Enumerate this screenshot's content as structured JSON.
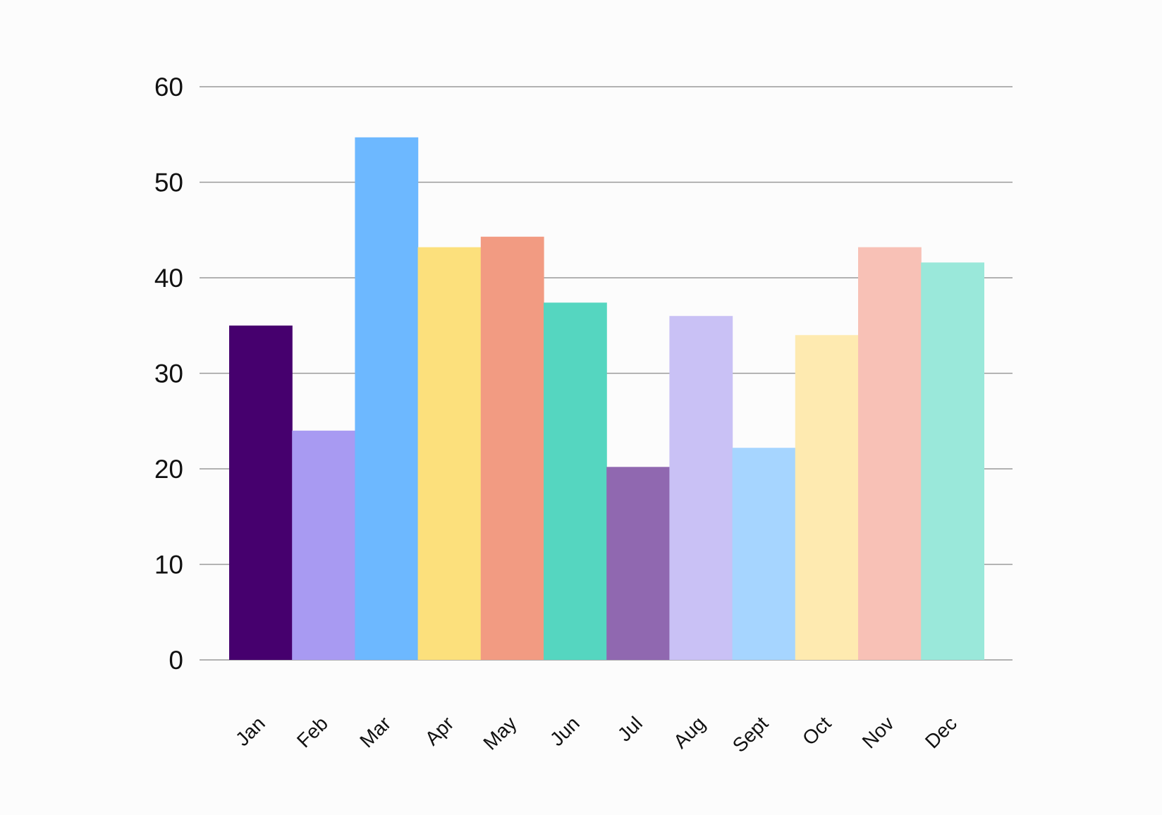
{
  "chart_data": {
    "type": "bar",
    "categories": [
      "Jan",
      "Feb",
      "Mar",
      "Apr",
      "May",
      "Jun",
      "Jul",
      "Aug",
      "Sept",
      "Oct",
      "Nov",
      "Dec"
    ],
    "values": [
      35,
      24,
      54.7,
      43.2,
      44.3,
      37.4,
      20.2,
      36,
      22.2,
      34,
      43.2,
      41.6
    ],
    "colors": [
      "#46006e",
      "#a89af2",
      "#6db8ff",
      "#fce07c",
      "#f29b82",
      "#55d6c0",
      "#9068b0",
      "#c9c1f5",
      "#a6d5ff",
      "#feeab0",
      "#f8c1b6",
      "#9ae8da"
    ],
    "yticks": [
      0,
      10,
      20,
      30,
      40,
      50,
      60
    ],
    "ylim": [
      0,
      60
    ],
    "grid": true,
    "legend": "none"
  }
}
